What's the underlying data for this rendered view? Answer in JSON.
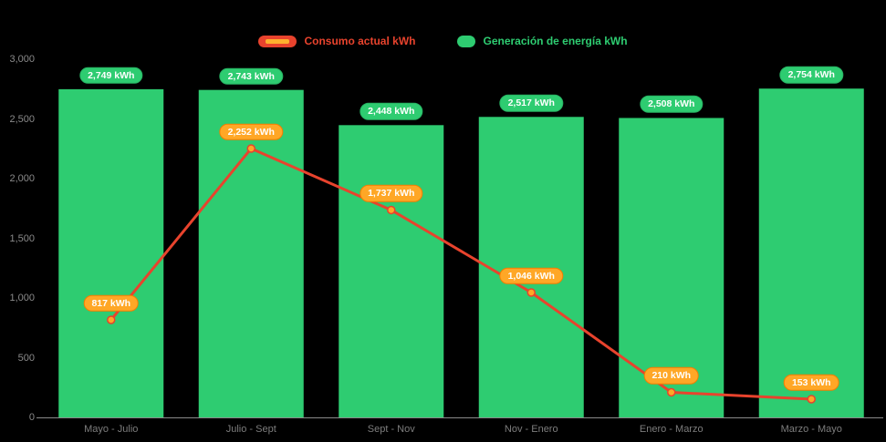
{
  "chart_data": {
    "type": "bar",
    "title": "",
    "xlabel": "",
    "ylabel": "",
    "background": "#000000",
    "grid": false,
    "legend_position": "top",
    "categories": [
      "Mayo - Julio",
      "Julio - Sept",
      "Sept - Nov",
      "Nov - Enero",
      "Enero - Marzo",
      "Marzo - Mayo"
    ],
    "ylim": [
      0,
      3000
    ],
    "yticks": [
      0,
      500,
      1000,
      1500,
      2000,
      2500,
      3000
    ],
    "ytick_labels": [
      "0",
      "500",
      "1,000",
      "1,500",
      "2,000",
      "2,500",
      "3,000"
    ],
    "series": [
      {
        "name": "Generación de energía kWh",
        "type": "bar",
        "color": "#2ecc71",
        "values": [
          2749,
          2743,
          2448,
          2517,
          2508,
          2754
        ],
        "labels": [
          "2,749 kWh",
          "2,743 kWh",
          "2,448 kWh",
          "2,517 kWh",
          "2,508 kWh",
          "2,754 kWh"
        ]
      },
      {
        "name": "Consumo actual kWh",
        "type": "line",
        "color": "#e8432d",
        "marker_color": "#ffa726",
        "values": [
          817,
          2252,
          1737,
          1046,
          210,
          153
        ],
        "labels": [
          "817 kWh",
          "2,252 kWh",
          "1,737 kWh",
          "1,046 kWh",
          "210 kWh",
          "153 kWh"
        ]
      }
    ]
  },
  "legend": {
    "items": [
      {
        "label": "Consumo actual kWh",
        "color": "#e8432d",
        "inner_color": "#ffb02e"
      },
      {
        "label": "Generación de energía kWh",
        "color": "#2ecc71"
      }
    ]
  }
}
